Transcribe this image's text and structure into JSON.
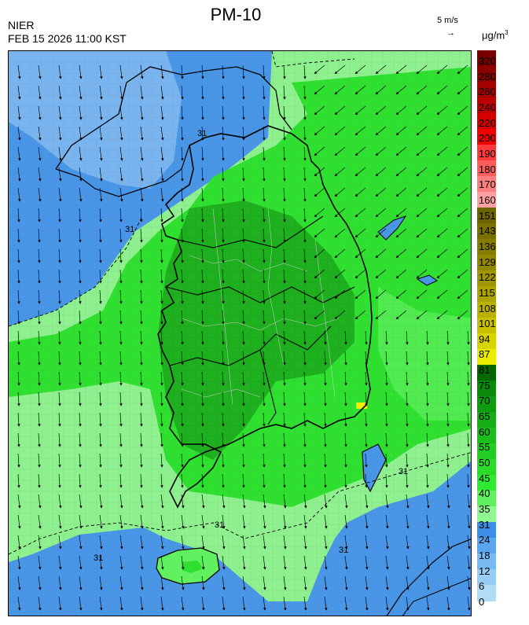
{
  "header": {
    "title": "PM-10",
    "agency": "NIER",
    "datetime": "FEB 15 2026 11:00 KST",
    "wind_ref": "5 m/s",
    "wind_arrow": "→",
    "unit": "μg/m",
    "unit_exp": "3"
  },
  "legend": {
    "labels": [
      "320",
      "280",
      "260",
      "240",
      "220",
      "200",
      "190",
      "180",
      "170",
      "160",
      "151",
      "143",
      "136",
      "129",
      "122",
      "115",
      "108",
      "101",
      "94",
      "87",
      "81",
      "75",
      "70",
      "65",
      "60",
      "55",
      "50",
      "45",
      "40",
      "35",
      "31",
      "24",
      "18",
      "12",
      "6",
      "0"
    ],
    "colors": [
      "#7a0000",
      "#8c0000",
      "#a40000",
      "#bc0000",
      "#d40000",
      "#f00000",
      "#ff3a3a",
      "#ff5c5c",
      "#ff7e7e",
      "#ffa0a0",
      "#6e6400",
      "#7a7000",
      "#867c00",
      "#928800",
      "#a09600",
      "#aca400",
      "#bab200",
      "#c8c000",
      "#d8d400",
      "#ecec00",
      "#006a00",
      "#0a8a0a",
      "#109c10",
      "#16ae16",
      "#1cbe1c",
      "#22ce22",
      "#28dc28",
      "#30ea30",
      "#60f060",
      "#90f890",
      "#3a8ee8",
      "#5aa6ee",
      "#78baf2",
      "#96ccf6",
      "#b0dcf8"
    ]
  },
  "map": {
    "contour_labels": [
      "31",
      "31",
      "31",
      "31",
      "31",
      "31"
    ],
    "colors": {
      "sea_low": "#4a96e6",
      "sea_mid": "#7ab4ee",
      "light_green": "#8ff08f",
      "green": "#30e030",
      "dark_green": "#1fb01f",
      "hotspot": "#f0f000",
      "coast": "#000000",
      "boundary": "#cfcfcf"
    }
  }
}
